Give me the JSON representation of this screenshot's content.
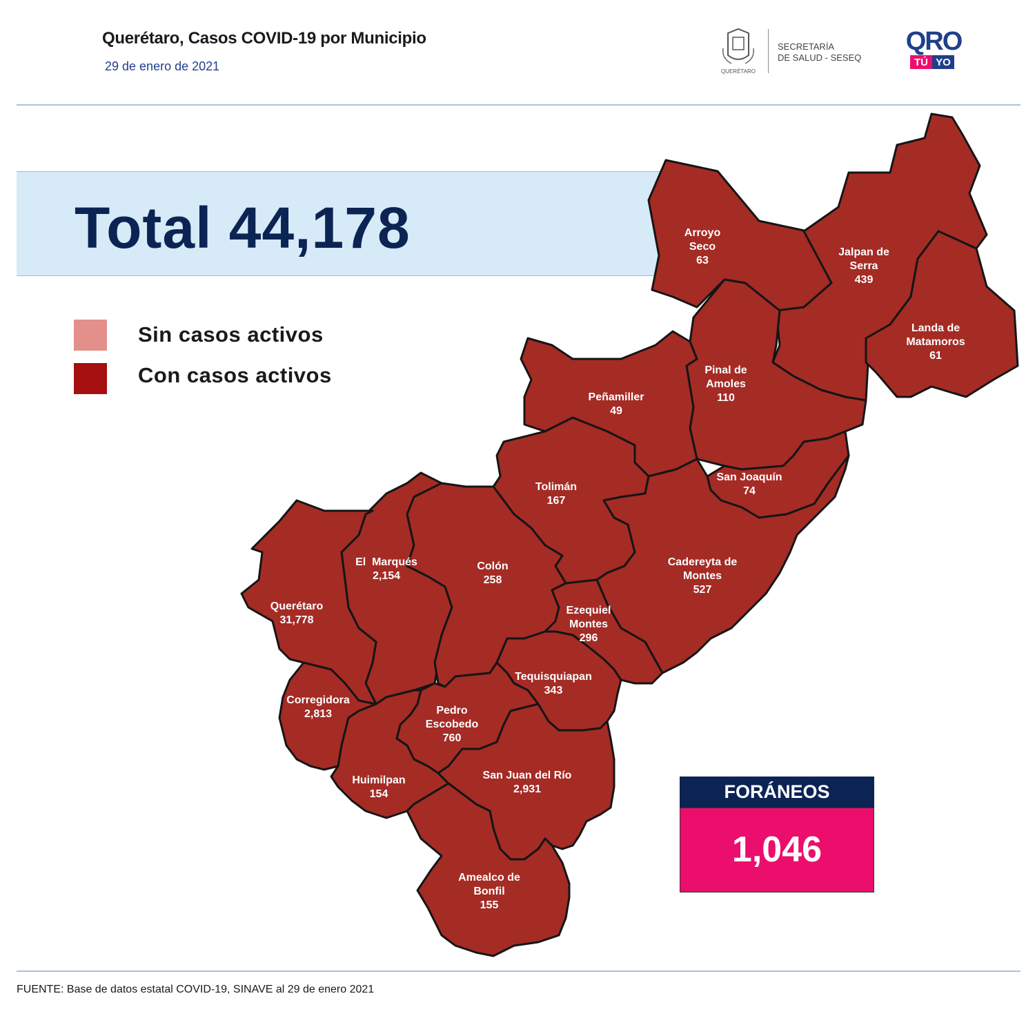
{
  "header": {
    "title": "Querétaro, Casos COVID-19 por Municipio",
    "date": "29 de enero de 2021",
    "logo_seal_caption": "QUERÉTARO",
    "ministry_line1": "SECRETARÍA",
    "ministry_line2": "DE SALUD - SESEQ",
    "qro_logo_word": "QRO",
    "qro_logo_tu": "TÚ",
    "qro_logo_yo": "YO"
  },
  "total": {
    "text": "Total 44,178"
  },
  "legend": [
    {
      "label": "Sin casos activos",
      "color": "#e38f8a"
    },
    {
      "label": "Con casos activos",
      "color": "#a50f0f"
    }
  ],
  "municipalities": {
    "arroyo_seco": {
      "lines": [
        "Arroyo",
        "Seco",
        "63"
      ]
    },
    "jalpan": {
      "lines": [
        "Jalpan de",
        "Serra",
        "439"
      ]
    },
    "landa": {
      "lines": [
        "Landa de",
        "Matamoros",
        "61"
      ]
    },
    "pinal": {
      "lines": [
        "Pinal de",
        "Amoles",
        "110"
      ]
    },
    "penamiller": {
      "lines": [
        "Peñamiller",
        "49"
      ]
    },
    "san_joaquin": {
      "lines": [
        "San Joaquín",
        "74"
      ]
    },
    "toliman": {
      "lines": [
        "Tolimán",
        "167"
      ]
    },
    "cadereyta": {
      "lines": [
        "Cadereyta de",
        "Montes",
        "527"
      ]
    },
    "el_marques": {
      "lines": [
        "El  Marqués",
        "2,154"
      ]
    },
    "colon": {
      "lines": [
        "Colón",
        "258"
      ]
    },
    "queretaro": {
      "lines": [
        "Querétaro",
        "31,778"
      ]
    },
    "ezequiel": {
      "lines": [
        "Ezequiel",
        "Montes",
        "296"
      ]
    },
    "tequisquiapan": {
      "lines": [
        "Tequisquiapan",
        "343"
      ]
    },
    "corregidora": {
      "lines": [
        "Corregidora",
        "2,813"
      ]
    },
    "pedro_escobedo": {
      "lines": [
        "Pedro",
        "Escobedo",
        "760"
      ]
    },
    "huimilpan": {
      "lines": [
        "Huimilpan",
        "154"
      ]
    },
    "san_juan": {
      "lines": [
        "San Juan del Río",
        "2,931"
      ]
    },
    "amealco": {
      "lines": [
        "Amealco de",
        "Bonfil",
        "155"
      ]
    }
  },
  "foraneos": {
    "label": "FORÁNEOS",
    "value": "1,046"
  },
  "source": "FUENTE:  Base de datos estatal COVID-19,  SINAVE  al 29 de enero 2021",
  "colors": {
    "map_fill": "#a52b25",
    "navy": "#0c2454",
    "magenta": "#ec0e6c",
    "band": "#d6eaf8"
  }
}
